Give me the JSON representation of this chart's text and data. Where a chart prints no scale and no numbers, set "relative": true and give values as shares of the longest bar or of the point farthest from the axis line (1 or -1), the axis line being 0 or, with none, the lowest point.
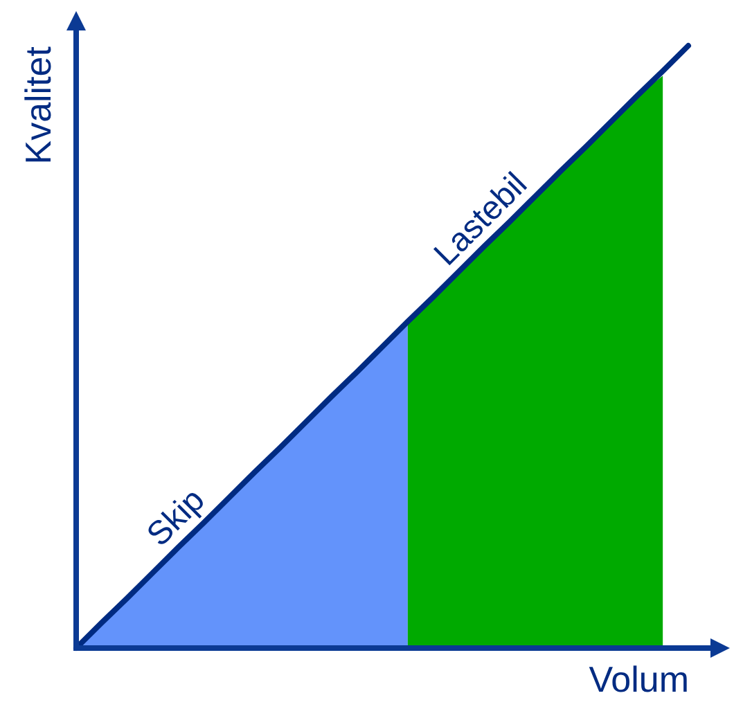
{
  "chart_data": {
    "type": "area",
    "relative": true,
    "xlabel": "Volum",
    "ylabel": "Kvalitet",
    "categories": [
      null,
      null,
      null,
      null,
      null,
      null,
      null,
      null,
      null,
      null,
      null,
      null,
      null,
      null,
      null,
      null,
      null,
      null,
      null,
      null,
      null,
      null,
      null,
      null,
      null
    ],
    "series": [
      {
        "name": "Skip",
        "color": "#6393fb",
        "values": [
          0,
          0.042,
          0.083,
          0.125,
          0.167,
          0.208,
          0.25,
          0.292,
          0.333,
          0.375,
          0.417,
          0.458,
          0.5,
          0.542,
          null,
          null,
          null,
          null,
          null,
          null,
          null,
          null,
          null,
          null,
          null
        ]
      },
      {
        "name": "Lastebil",
        "color": "#00aa00",
        "values": [
          null,
          null,
          null,
          null,
          null,
          null,
          null,
          null,
          null,
          null,
          null,
          null,
          null,
          0.542,
          0.583,
          0.625,
          0.667,
          0.708,
          0.75,
          0.792,
          0.833,
          0.875,
          0.917,
          0.95,
          null
        ]
      },
      {
        "type": "line",
        "color": "#002b82",
        "values": [
          0,
          0.042,
          0.083,
          0.125,
          0.167,
          0.208,
          0.25,
          0.292,
          0.333,
          0.375,
          0.417,
          0.458,
          0.5,
          0.542,
          0.583,
          0.625,
          0.667,
          0.708,
          0.75,
          0.792,
          0.833,
          0.875,
          0.917,
          0.958,
          1
        ]
      }
    ]
  }
}
